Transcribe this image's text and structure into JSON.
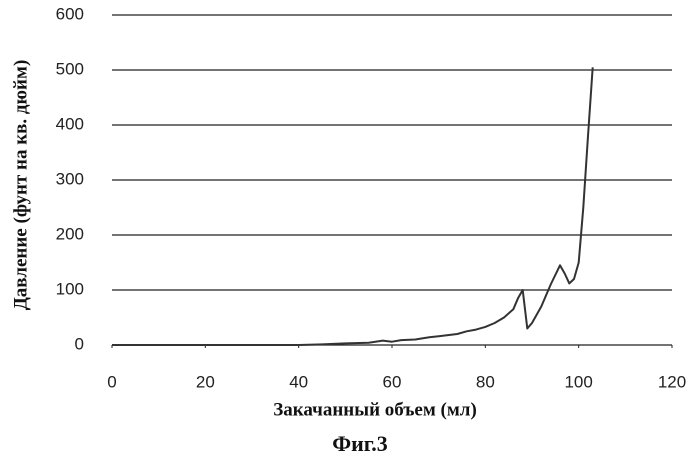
{
  "chart_data": {
    "type": "line",
    "x_label": "Закачанный объем (мл)",
    "y_label": "Давление (фунт на кв. дюйм)",
    "caption": "Фиг.3",
    "x": [
      0,
      5,
      10,
      15,
      20,
      25,
      30,
      35,
      40,
      45,
      50,
      55,
      58,
      60,
      62,
      65,
      68,
      70,
      72,
      74,
      76,
      78,
      80,
      82,
      84,
      86,
      87,
      88,
      89,
      90,
      92,
      94,
      96,
      97,
      98,
      99,
      100,
      101,
      102,
      103
    ],
    "values": [
      0,
      0,
      0,
      0,
      0,
      0,
      0,
      0,
      0,
      1,
      3,
      4,
      8,
      6,
      9,
      10,
      14,
      16,
      18,
      20,
      25,
      28,
      33,
      40,
      50,
      65,
      85,
      100,
      30,
      40,
      70,
      110,
      145,
      130,
      112,
      120,
      150,
      250,
      380,
      505
    ],
    "color": "#333333",
    "xlim": [
      0,
      120
    ],
    "xticks": [
      0,
      20,
      40,
      60,
      80,
      100,
      120
    ],
    "ylim": [
      0,
      600
    ],
    "yticks": [
      0,
      100,
      200,
      300,
      400,
      500,
      600
    ],
    "grid": true
  }
}
